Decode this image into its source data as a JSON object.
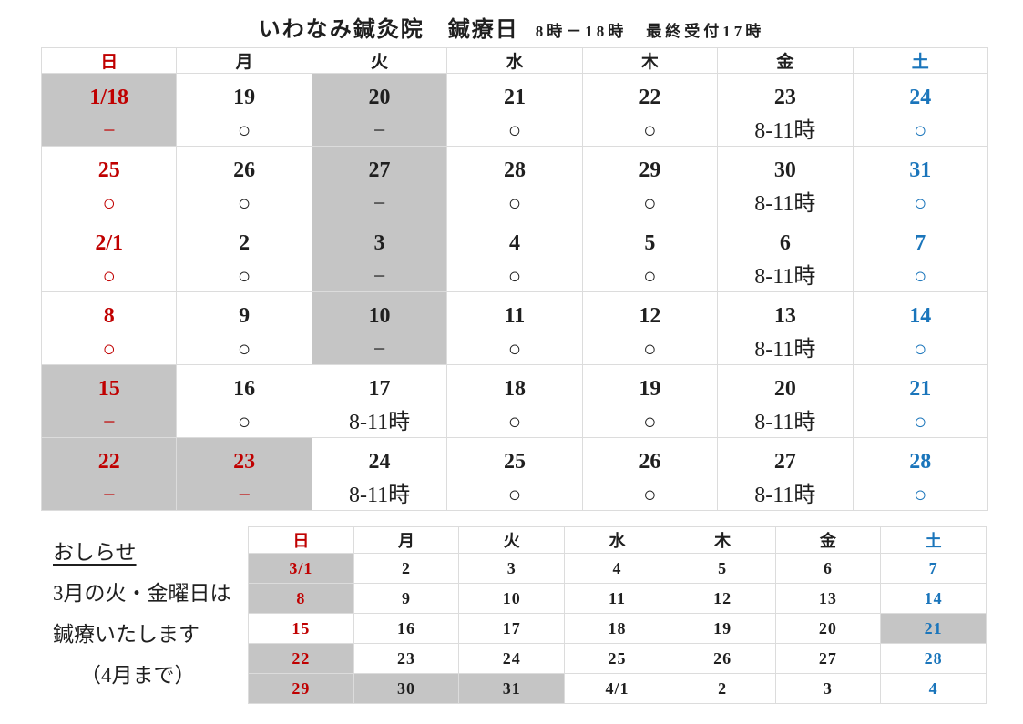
{
  "title": {
    "clinic": "いわなみ鍼灸院　鍼療日",
    "hours": "8時－18時　最終受付17時"
  },
  "colors": {
    "holiday_red": "#c00000",
    "saturday_blue": "#1a75bb",
    "closed_gray": "#c5c5c5"
  },
  "legend": {
    "open_mark": "○",
    "closed_mark": "−",
    "short_hours_mark": "8-11時"
  },
  "main_calendar": {
    "headers": [
      {
        "label": "日",
        "c": "red"
      },
      {
        "label": "月"
      },
      {
        "label": "火"
      },
      {
        "label": "水"
      },
      {
        "label": "木"
      },
      {
        "label": "金"
      },
      {
        "label": "土",
        "c": "blue"
      }
    ],
    "rows": [
      [
        {
          "d": "1/18",
          "m": "−",
          "bg": "gray",
          "c": "red"
        },
        {
          "d": "19",
          "m": "○"
        },
        {
          "d": "20",
          "m": "−",
          "bg": "gray"
        },
        {
          "d": "21",
          "m": "○"
        },
        {
          "d": "22",
          "m": "○"
        },
        {
          "d": "23",
          "m": "8-11時"
        },
        {
          "d": "24",
          "m": "○",
          "c": "blue"
        }
      ],
      [
        {
          "d": "25",
          "m": "○",
          "c": "red"
        },
        {
          "d": "26",
          "m": "○"
        },
        {
          "d": "27",
          "m": "−",
          "bg": "gray"
        },
        {
          "d": "28",
          "m": "○"
        },
        {
          "d": "29",
          "m": "○"
        },
        {
          "d": "30",
          "m": "8-11時"
        },
        {
          "d": "31",
          "m": "○",
          "c": "blue"
        }
      ],
      [
        {
          "d": "2/1",
          "m": "○",
          "c": "red"
        },
        {
          "d": "2",
          "m": "○"
        },
        {
          "d": "3",
          "m": "−",
          "bg": "gray"
        },
        {
          "d": "4",
          "m": "○"
        },
        {
          "d": "5",
          "m": "○"
        },
        {
          "d": "6",
          "m": "8-11時"
        },
        {
          "d": "7",
          "m": "○",
          "c": "blue"
        }
      ],
      [
        {
          "d": "8",
          "m": "○",
          "c": "red"
        },
        {
          "d": "9",
          "m": "○"
        },
        {
          "d": "10",
          "m": "−",
          "bg": "gray"
        },
        {
          "d": "11",
          "m": "○"
        },
        {
          "d": "12",
          "m": "○"
        },
        {
          "d": "13",
          "m": "8-11時"
        },
        {
          "d": "14",
          "m": "○",
          "c": "blue"
        }
      ],
      [
        {
          "d": "15",
          "m": "−",
          "bg": "gray",
          "c": "red"
        },
        {
          "d": "16",
          "m": "○"
        },
        {
          "d": "17",
          "m": "8-11時"
        },
        {
          "d": "18",
          "m": "○"
        },
        {
          "d": "19",
          "m": "○"
        },
        {
          "d": "20",
          "m": "8-11時"
        },
        {
          "d": "21",
          "m": "○",
          "c": "blue"
        }
      ],
      [
        {
          "d": "22",
          "m": "−",
          "bg": "gray",
          "c": "red"
        },
        {
          "d": "23",
          "m": "−",
          "bg": "gray",
          "c": "red"
        },
        {
          "d": "24",
          "m": "8-11時"
        },
        {
          "d": "25",
          "m": "○"
        },
        {
          "d": "26",
          "m": "○"
        },
        {
          "d": "27",
          "m": "8-11時"
        },
        {
          "d": "28",
          "m": "○",
          "c": "blue"
        }
      ]
    ]
  },
  "march_calendar": {
    "headers": [
      {
        "label": "日",
        "c": "red"
      },
      {
        "label": "月"
      },
      {
        "label": "火"
      },
      {
        "label": "水"
      },
      {
        "label": "木"
      },
      {
        "label": "金"
      },
      {
        "label": "土",
        "c": "blue"
      }
    ],
    "rows": [
      [
        {
          "d": "3/1",
          "bg": "gray",
          "c": "red"
        },
        {
          "d": "2"
        },
        {
          "d": "3"
        },
        {
          "d": "4"
        },
        {
          "d": "5"
        },
        {
          "d": "6"
        },
        {
          "d": "7",
          "c": "blue"
        }
      ],
      [
        {
          "d": "8",
          "bg": "gray",
          "c": "red"
        },
        {
          "d": "9"
        },
        {
          "d": "10"
        },
        {
          "d": "11"
        },
        {
          "d": "12"
        },
        {
          "d": "13"
        },
        {
          "d": "14",
          "c": "blue"
        }
      ],
      [
        {
          "d": "15",
          "c": "red"
        },
        {
          "d": "16"
        },
        {
          "d": "17"
        },
        {
          "d": "18"
        },
        {
          "d": "19"
        },
        {
          "d": "20"
        },
        {
          "d": "21",
          "bg": "gray",
          "c": "blue"
        }
      ],
      [
        {
          "d": "22",
          "bg": "gray",
          "c": "red"
        },
        {
          "d": "23"
        },
        {
          "d": "24"
        },
        {
          "d": "25"
        },
        {
          "d": "26"
        },
        {
          "d": "27"
        },
        {
          "d": "28",
          "c": "blue"
        }
      ],
      [
        {
          "d": "29",
          "bg": "gray",
          "c": "red"
        },
        {
          "d": "30",
          "bg": "gray"
        },
        {
          "d": "31",
          "bg": "gray"
        },
        {
          "d": "4/1"
        },
        {
          "d": "2"
        },
        {
          "d": "3"
        },
        {
          "d": "4",
          "c": "blue"
        }
      ]
    ]
  },
  "notice": {
    "heading": "おしらせ",
    "line1": "3月の火・金曜日は",
    "line2": "鍼療いたします",
    "line3": "（4月まで）"
  }
}
